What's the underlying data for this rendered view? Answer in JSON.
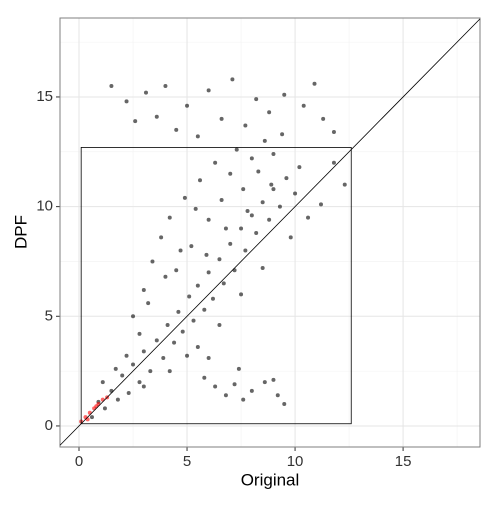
{
  "chart_data": {
    "type": "scatter",
    "x_label": "Original",
    "y_label": "DPF",
    "xlim": [
      -0.88,
      18.56
    ],
    "ylim": [
      -0.96,
      18.6
    ],
    "xticks": [
      0,
      5,
      10,
      15
    ],
    "yticks": [
      0,
      5,
      10,
      15
    ],
    "minor_xticks": [
      2.5,
      7.5,
      12.5,
      17.5
    ],
    "minor_yticks": [
      2.5,
      7.5,
      12.5,
      17.5
    ],
    "grid": true,
    "reference_line": {
      "slope": 1,
      "intercept": 0
    },
    "box": {
      "x": [
        0.1,
        12.6
      ],
      "y": [
        0.1,
        12.7
      ]
    },
    "series": [
      {
        "color": "#000000",
        "x": [
          0.6,
          0.9,
          1.2,
          1.5,
          1.8,
          2.0,
          2.3,
          2.5,
          2.8,
          3.0,
          1.1,
          1.7,
          2.2,
          3.3,
          3.6,
          3.9,
          4.1,
          4.4,
          4.6,
          4.8,
          5.1,
          5.3,
          5.5,
          5.8,
          6.0,
          6.2,
          6.5,
          6.7,
          7.0,
          7.2,
          7.5,
          7.7,
          8.0,
          8.2,
          8.5,
          8.8,
          9.0,
          9.3,
          9.6,
          10.0,
          2.5,
          3.0,
          3.4,
          3.8,
          4.2,
          4.5,
          4.9,
          5.2,
          5.6,
          6.0,
          6.3,
          6.6,
          7.0,
          7.3,
          7.6,
          8.0,
          8.3,
          8.6,
          9.0,
          9.4,
          2.8,
          3.2,
          4.0,
          4.7,
          5.4,
          5.9,
          6.8,
          7.8,
          8.9,
          10.2,
          2.2,
          2.6,
          3.1,
          3.6,
          4.0,
          4.5,
          5.0,
          5.5,
          6.0,
          6.6,
          7.1,
          7.7,
          8.2,
          8.8,
          9.5,
          10.4,
          10.9,
          11.3,
          1.5,
          11.8,
          5.8,
          6.3,
          6.8,
          7.2,
          7.6,
          8.0,
          8.6,
          9.2,
          9.5,
          9.0,
          6.0,
          5.5,
          7.4,
          5.0,
          6.5,
          7.5,
          8.5,
          9.8,
          10.6,
          11.2,
          11.8,
          12.3,
          3.0,
          4.2
        ],
        "y": [
          0.4,
          1.1,
          0.8,
          1.6,
          1.2,
          2.3,
          1.5,
          2.8,
          2.0,
          3.4,
          2.0,
          2.6,
          3.2,
          2.5,
          3.9,
          3.1,
          4.6,
          3.8,
          5.2,
          4.3,
          5.9,
          4.8,
          6.4,
          5.3,
          7.0,
          5.8,
          7.6,
          6.5,
          8.3,
          7.1,
          9.0,
          8.0,
          9.6,
          8.8,
          10.2,
          9.4,
          10.8,
          10.0,
          11.3,
          10.6,
          5.0,
          6.2,
          7.5,
          8.6,
          9.5,
          7.1,
          10.4,
          8.2,
          11.2,
          9.4,
          12.0,
          10.3,
          11.5,
          12.6,
          10.8,
          12.2,
          11.6,
          13.0,
          12.4,
          13.3,
          4.2,
          5.6,
          6.8,
          8.0,
          9.9,
          7.8,
          9.0,
          9.8,
          11.0,
          11.8,
          14.8,
          13.9,
          15.2,
          14.1,
          15.5,
          13.5,
          14.6,
          13.2,
          15.3,
          14.0,
          15.8,
          13.7,
          14.9,
          14.3,
          15.1,
          14.6,
          15.6,
          14.0,
          15.5,
          13.4,
          2.2,
          1.8,
          1.4,
          1.9,
          1.2,
          1.6,
          2.0,
          1.4,
          1.0,
          2.1,
          3.1,
          3.6,
          2.6,
          3.2,
          4.6,
          6.0,
          7.2,
          8.6,
          9.5,
          10.1,
          12.0,
          11.0,
          1.8,
          2.5
        ]
      },
      {
        "color": "#ff0000",
        "x": [
          0.1,
          0.3,
          0.5,
          0.7,
          0.9,
          1.1,
          1.3,
          0.4,
          0.8
        ],
        "y": [
          0.2,
          0.4,
          0.6,
          0.8,
          1.0,
          1.2,
          1.3,
          0.3,
          0.9
        ]
      }
    ]
  }
}
